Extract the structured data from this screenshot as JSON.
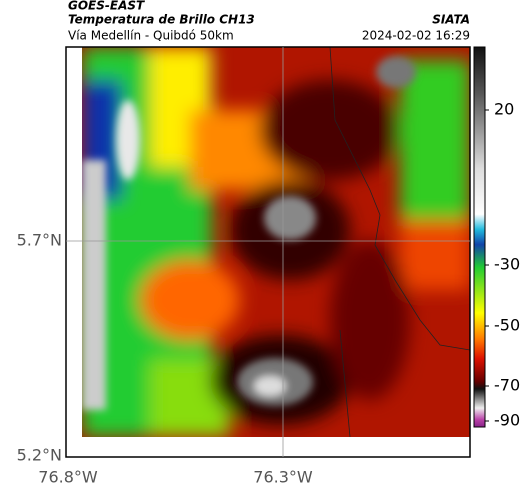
{
  "header": {
    "product": "GOES-EAST",
    "title": "Temperatura de Brillo CH13",
    "source": "SIATA",
    "subtitle": "Vía Medellín - Quibdó 50km",
    "timestamp": "2024-02-02 16:29"
  },
  "map": {
    "lat_labels": [
      "5.7°N",
      "5.2°N"
    ],
    "lon_labels": [
      "76.8°W",
      "76.3°W"
    ]
  },
  "colorbar": {
    "ticks": [
      20,
      -30,
      -50,
      -70,
      -90
    ]
  }
}
